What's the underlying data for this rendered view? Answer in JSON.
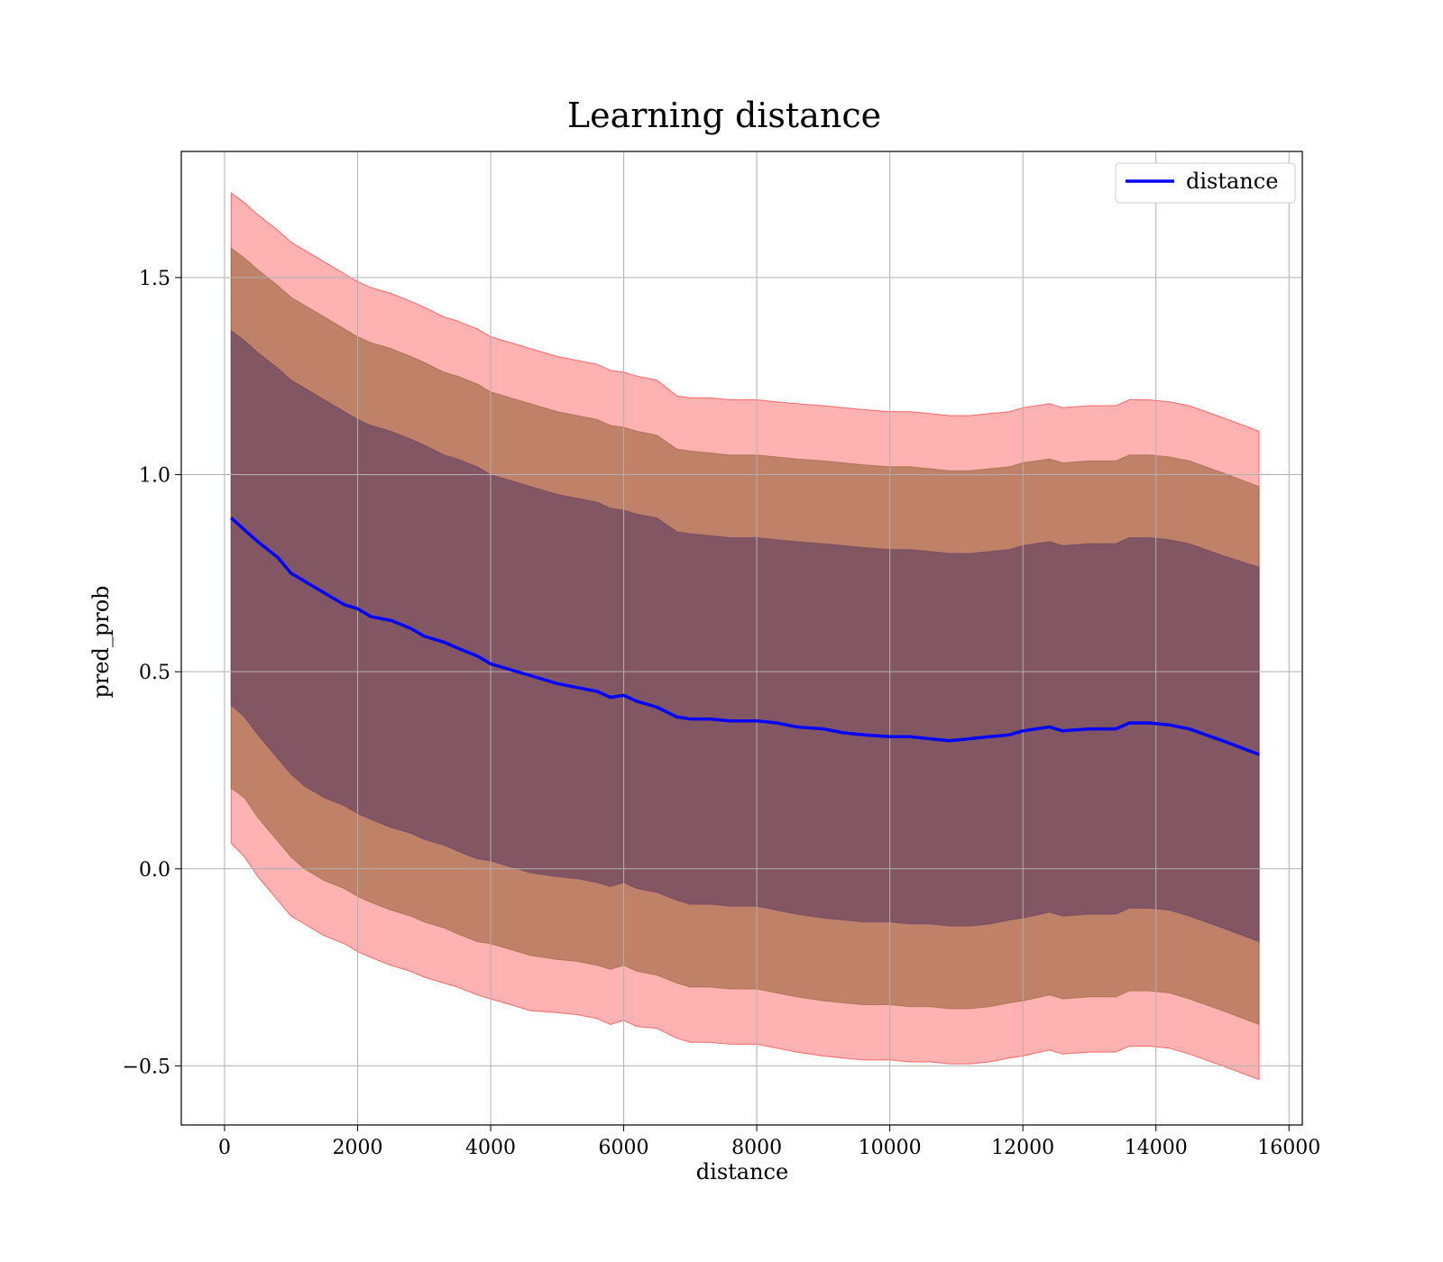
{
  "chart_data": {
    "type": "line",
    "title": "Learning distance",
    "xlabel": "distance",
    "ylabel": "pred_prob",
    "xlim": [
      -650,
      16200
    ],
    "ylim": [
      -0.65,
      1.82
    ],
    "xticks": [
      0,
      2000,
      4000,
      6000,
      8000,
      10000,
      12000,
      14000,
      16000
    ],
    "xtick_labels": [
      "0",
      "2000",
      "4000",
      "6000",
      "8000",
      "10000",
      "12000",
      "14000",
      "16000"
    ],
    "yticks": [
      -0.5,
      0.0,
      0.5,
      1.0,
      1.5
    ],
    "ytick_labels": [
      "−0.5",
      "0.0",
      "0.5",
      "1.0",
      "1.5"
    ],
    "grid": true,
    "legend": {
      "position": "top-right",
      "entries": [
        "distance"
      ]
    },
    "colors": {
      "line": "#0000ff",
      "band_outer": "#ff0000",
      "band_middle": "#8b5a2b",
      "band_inner": "#5c3a62",
      "grid": "#b0b0b0",
      "axes": "#000000"
    },
    "series": [
      {
        "name": "distance",
        "x": [
          100,
          300,
          500,
          800,
          1000,
          1200,
          1500,
          1800,
          2000,
          2200,
          2500,
          2800,
          3000,
          3300,
          3500,
          3800,
          4000,
          4300,
          4600,
          5000,
          5300,
          5600,
          5800,
          6000,
          6200,
          6500,
          6800,
          7000,
          7300,
          7600,
          8000,
          8300,
          8600,
          9000,
          9300,
          9600,
          10000,
          10300,
          10600,
          10900,
          11200,
          11500,
          11800,
          12000,
          12400,
          12600,
          13000,
          13400,
          13600,
          13900,
          14200,
          14500,
          15000,
          15550
        ],
        "y": [
          0.89,
          0.86,
          0.83,
          0.79,
          0.75,
          0.73,
          0.7,
          0.67,
          0.66,
          0.64,
          0.63,
          0.61,
          0.59,
          0.575,
          0.56,
          0.54,
          0.52,
          0.505,
          0.49,
          0.47,
          0.46,
          0.45,
          0.435,
          0.44,
          0.425,
          0.41,
          0.385,
          0.38,
          0.38,
          0.375,
          0.375,
          0.37,
          0.36,
          0.355,
          0.345,
          0.34,
          0.335,
          0.335,
          0.33,
          0.325,
          0.33,
          0.335,
          0.34,
          0.35,
          0.36,
          0.35,
          0.355,
          0.355,
          0.37,
          0.37,
          0.365,
          0.355,
          0.325,
          0.29
        ],
        "bands": [
          {
            "level": "outer",
            "lower": [
              0.065,
              0.03,
              -0.02,
              -0.08,
              -0.12,
              -0.14,
              -0.17,
              -0.19,
              -0.21,
              -0.225,
              -0.245,
              -0.26,
              -0.275,
              -0.29,
              -0.3,
              -0.32,
              -0.33,
              -0.345,
              -0.36,
              -0.365,
              -0.37,
              -0.38,
              -0.395,
              -0.385,
              -0.4,
              -0.405,
              -0.43,
              -0.44,
              -0.44,
              -0.445,
              -0.445,
              -0.455,
              -0.465,
              -0.475,
              -0.48,
              -0.485,
              -0.485,
              -0.49,
              -0.49,
              -0.495,
              -0.495,
              -0.49,
              -0.48,
              -0.475,
              -0.46,
              -0.47,
              -0.465,
              -0.465,
              -0.45,
              -0.45,
              -0.455,
              -0.47,
              -0.5,
              -0.535
            ],
            "upper": [
              1.715,
              1.69,
              1.66,
              1.62,
              1.59,
              1.57,
              1.54,
              1.51,
              1.49,
              1.475,
              1.46,
              1.44,
              1.425,
              1.4,
              1.39,
              1.37,
              1.35,
              1.335,
              1.32,
              1.3,
              1.29,
              1.28,
              1.265,
              1.26,
              1.25,
              1.24,
              1.2,
              1.195,
              1.195,
              1.19,
              1.19,
              1.185,
              1.18,
              1.175,
              1.17,
              1.165,
              1.16,
              1.16,
              1.155,
              1.15,
              1.15,
              1.155,
              1.16,
              1.17,
              1.18,
              1.17,
              1.175,
              1.175,
              1.19,
              1.19,
              1.185,
              1.175,
              1.145,
              1.11
            ]
          },
          {
            "level": "middle",
            "lower": [
              0.205,
              0.18,
              0.13,
              0.07,
              0.03,
              0.0,
              -0.03,
              -0.05,
              -0.07,
              -0.085,
              -0.105,
              -0.12,
              -0.135,
              -0.15,
              -0.165,
              -0.185,
              -0.19,
              -0.205,
              -0.22,
              -0.23,
              -0.235,
              -0.245,
              -0.255,
              -0.245,
              -0.26,
              -0.27,
              -0.29,
              -0.3,
              -0.3,
              -0.305,
              -0.305,
              -0.315,
              -0.325,
              -0.335,
              -0.34,
              -0.345,
              -0.345,
              -0.35,
              -0.35,
              -0.355,
              -0.355,
              -0.35,
              -0.34,
              -0.335,
              -0.32,
              -0.33,
              -0.325,
              -0.325,
              -0.31,
              -0.31,
              -0.315,
              -0.33,
              -0.36,
              -0.395
            ],
            "upper": [
              1.575,
              1.55,
              1.52,
              1.48,
              1.45,
              1.43,
              1.4,
              1.37,
              1.35,
              1.335,
              1.32,
              1.3,
              1.285,
              1.26,
              1.25,
              1.23,
              1.21,
              1.195,
              1.18,
              1.16,
              1.15,
              1.14,
              1.125,
              1.12,
              1.11,
              1.1,
              1.065,
              1.06,
              1.055,
              1.05,
              1.05,
              1.045,
              1.04,
              1.035,
              1.03,
              1.025,
              1.02,
              1.02,
              1.015,
              1.01,
              1.01,
              1.015,
              1.02,
              1.03,
              1.04,
              1.03,
              1.035,
              1.035,
              1.05,
              1.05,
              1.045,
              1.035,
              1.005,
              0.97
            ]
          },
          {
            "level": "inner",
            "lower": [
              0.415,
              0.385,
              0.34,
              0.28,
              0.24,
              0.21,
              0.18,
              0.16,
              0.14,
              0.125,
              0.105,
              0.09,
              0.075,
              0.06,
              0.045,
              0.025,
              0.02,
              0.005,
              -0.01,
              -0.02,
              -0.025,
              -0.035,
              -0.045,
              -0.035,
              -0.05,
              -0.06,
              -0.08,
              -0.09,
              -0.09,
              -0.095,
              -0.095,
              -0.105,
              -0.115,
              -0.125,
              -0.13,
              -0.135,
              -0.135,
              -0.14,
              -0.14,
              -0.145,
              -0.145,
              -0.14,
              -0.13,
              -0.125,
              -0.11,
              -0.12,
              -0.115,
              -0.115,
              -0.1,
              -0.1,
              -0.105,
              -0.12,
              -0.15,
              -0.185
            ],
            "upper": [
              1.365,
              1.34,
              1.31,
              1.27,
              1.24,
              1.22,
              1.19,
              1.16,
              1.14,
              1.125,
              1.11,
              1.09,
              1.075,
              1.05,
              1.04,
              1.02,
              1.0,
              0.985,
              0.97,
              0.95,
              0.94,
              0.93,
              0.915,
              0.91,
              0.9,
              0.89,
              0.855,
              0.85,
              0.845,
              0.84,
              0.84,
              0.835,
              0.83,
              0.825,
              0.82,
              0.815,
              0.81,
              0.81,
              0.805,
              0.8,
              0.8,
              0.805,
              0.81,
              0.82,
              0.83,
              0.82,
              0.825,
              0.825,
              0.84,
              0.84,
              0.835,
              0.825,
              0.795,
              0.765
            ]
          }
        ]
      }
    ]
  }
}
